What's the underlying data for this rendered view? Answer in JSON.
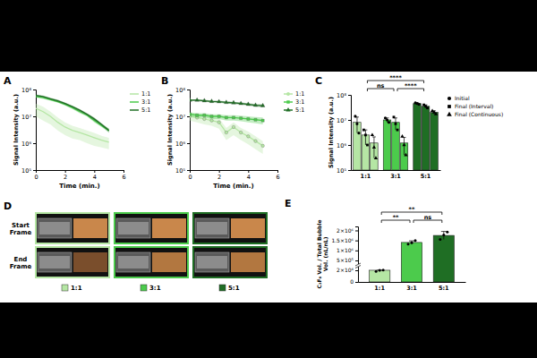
{
  "chart_data": [
    {
      "panel": "A",
      "type": "line",
      "x_label": "Time (min.)",
      "y_label": "Signal Intensity (a.u.)",
      "x": [
        0,
        0.5,
        1,
        1.5,
        2,
        2.5,
        3,
        3.5,
        4,
        4.5,
        5
      ],
      "xlim": [
        0,
        6
      ],
      "xticks": [
        0,
        2,
        4,
        6
      ],
      "log": "y",
      "ylim": [
        100000,
        100000000
      ],
      "yticks": [
        {
          "value": 100000,
          "label": "10⁵"
        },
        {
          "value": 1000000,
          "label": "10⁶"
        },
        {
          "value": 10000000,
          "label": "10⁷"
        },
        {
          "value": 100000000,
          "label": "10⁸"
        }
      ],
      "legend": "right",
      "series": [
        {
          "name": "1:1",
          "color": "#b5e6a4",
          "values": [
            20000000,
            15000000,
            10000000,
            6000000,
            4000000,
            3000000,
            2500000,
            2000000,
            1600000,
            1300000,
            1100000
          ],
          "errors": [
            10000000,
            8000000,
            5000000,
            3000000,
            2000000,
            1500000,
            1200000,
            1000000,
            800000,
            600000,
            500000
          ]
        },
        {
          "name": "3:1",
          "color": "#4ccb4c",
          "values": [
            55000000,
            50000000,
            42000000,
            35000000,
            28000000,
            21000000,
            15000000,
            11000000,
            7000000,
            4500000,
            3000000
          ],
          "errors": [
            5000000,
            5000000,
            4000000,
            3000000,
            3000000,
            2000000,
            2000000,
            1000000,
            1000000,
            500000,
            500000
          ]
        },
        {
          "name": "5:1",
          "color": "#1f6e24",
          "values": [
            60000000,
            55000000,
            45000000,
            38000000,
            30000000,
            23000000,
            17000000,
            12000000,
            8000000,
            5000000,
            3000000
          ],
          "errors": [
            6000000,
            5000000,
            4000000,
            4000000,
            3000000,
            2000000,
            2000000,
            1000000,
            1000000,
            500000,
            500000
          ]
        }
      ]
    },
    {
      "panel": "B",
      "type": "line",
      "x_label": "Time (min.)",
      "y_label": "Signal Intensity (a.u.)",
      "x": [
        0,
        0.5,
        1,
        1.5,
        2,
        2.5,
        3,
        3.5,
        4,
        4.5,
        5
      ],
      "xlim": [
        0,
        6
      ],
      "xticks": [
        0,
        2,
        4,
        6
      ],
      "log": "y",
      "ylim": [
        100000,
        100000000
      ],
      "yticks": [
        {
          "value": 100000,
          "label": "10⁵"
        },
        {
          "value": 1000000,
          "label": "10⁶"
        },
        {
          "value": 10000000,
          "label": "10⁷"
        },
        {
          "value": 100000000,
          "label": "10⁸"
        }
      ],
      "legend": "right",
      "series": [
        {
          "name": "1:1",
          "color": "#b5e6a4",
          "marker": "circle",
          "values": [
            10000000,
            9000000,
            8000000,
            7000000,
            6000000,
            2500000,
            4000000,
            2500000,
            1800000,
            1200000,
            800000
          ],
          "errors": [
            3000000,
            3000000,
            3000000,
            2500000,
            2500000,
            1200000,
            2000000,
            1200000,
            900000,
            600000,
            400000
          ]
        },
        {
          "name": "3:1",
          "color": "#4ccb4c",
          "marker": "square",
          "values": [
            12000000,
            11000000,
            11000000,
            10000000,
            10000000,
            9000000,
            9000000,
            8500000,
            8000000,
            7500000,
            7000000
          ],
          "errors": [
            2000000,
            2000000,
            2000000,
            2000000,
            2000000,
            2000000,
            2000000,
            2000000,
            2000000,
            2000000,
            2000000
          ]
        },
        {
          "name": "5:1",
          "color": "#1f6e24",
          "marker": "triangle",
          "values": [
            40000000,
            40000000,
            38000000,
            36000000,
            35000000,
            33000000,
            32000000,
            30000000,
            28000000,
            26000000,
            25000000
          ],
          "errors": [
            3000000,
            3000000,
            3000000,
            3000000,
            3000000,
            3000000,
            3000000,
            3000000,
            3000000,
            3000000,
            3000000
          ]
        }
      ]
    },
    {
      "panel": "C",
      "type": "bar",
      "y_label": "Signal Intensity (a.u.)",
      "categories": [
        "1:1",
        "3:1",
        "5:1"
      ],
      "colors": [
        "#b5e6a4",
        "#4ccb4c",
        "#1f6e24"
      ],
      "log": "y",
      "ylim": [
        100000,
        100000000
      ],
      "yticks": [
        {
          "value": 100000,
          "label": "10⁵"
        },
        {
          "value": 1000000,
          "label": "10⁶"
        },
        {
          "value": 10000000,
          "label": "10⁷"
        },
        {
          "value": 100000000,
          "label": "10⁸"
        }
      ],
      "legend": "right",
      "series": [
        {
          "name": "Initial",
          "color": "#000000",
          "marker": "circle",
          "values": [
            8000000,
            10000000,
            45000000
          ],
          "errors": [
            5000000,
            2000000,
            3000000
          ],
          "points": [
            [
              14000000,
              7000000,
              3000000
            ],
            [
              12000000,
              10000000,
              8000000
            ],
            [
              48000000,
              45000000,
              42000000
            ]
          ]
        },
        {
          "name": "Final (Interval)",
          "color": "#000000",
          "marker": "square",
          "values": [
            2500000,
            8000000,
            35000000
          ],
          "errors": [
            1500000,
            4000000,
            5000000
          ],
          "points": [
            [
              4000000,
              2500000,
              1000000
            ],
            [
              13000000,
              7000000,
              4000000
            ],
            [
              40000000,
              35000000,
              30000000
            ]
          ]
        },
        {
          "name": "Final (Continuous)",
          "color": "#000000",
          "marker": "triangle",
          "values": [
            1200000,
            1200000,
            20000000
          ],
          "errors": [
            900000,
            800000,
            3000000
          ],
          "points": [
            [
              2500000,
              800000,
              300000
            ],
            [
              2200000,
              1000000,
              400000
            ],
            [
              23000000,
              20000000,
              17000000
            ]
          ]
        }
      ],
      "annotations": [
        {
          "text": "ns",
          "from": "1:1",
          "to": "3:1"
        },
        {
          "text": "****",
          "from": "3:1",
          "to": "5:1"
        },
        {
          "text": "****",
          "from": "1:1",
          "to": "5:1"
        }
      ]
    },
    {
      "panel": "D",
      "type": "image",
      "rows": [
        "Start Frame",
        "End Frame"
      ],
      "legend": "bottom",
      "series": [
        {
          "name": "1:1",
          "color": "#b5e6a4"
        },
        {
          "name": "3:1",
          "color": "#4ccb4c"
        },
        {
          "name": "5:1",
          "color": "#1f6e24"
        }
      ]
    },
    {
      "panel": "E",
      "type": "bar",
      "y_label": "C₃F₈ Vol. / Total Bubble Vol. (nL/nL)",
      "categories": [
        "1:1",
        "3:1",
        "5:1"
      ],
      "colors": [
        "#b5e6a4",
        "#4ccb4c",
        "#1f6e24"
      ],
      "values": [
        22000,
        1400000,
        1750000
      ],
      "errors": [
        4000,
        80000,
        200000
      ],
      "points": [
        [
          18000,
          22000,
          26000
        ],
        [
          1320000,
          1380000,
          1500000
        ],
        [
          1550000,
          1780000,
          1920000
        ]
      ],
      "ylim": [
        0,
        2200000
      ],
      "yticks": [
        0,
        {
          "value": 20000,
          "label": "2×10⁴"
        },
        {
          "value": 500000,
          "label": "5×10⁵"
        },
        {
          "value": 1000000,
          "label": "1×10⁶"
        },
        {
          "value": 1500000,
          "label": "1.5×10⁶"
        },
        {
          "value": 2000000,
          "label": "2×10⁶"
        }
      ],
      "annotations": [
        {
          "text": "**",
          "from": "1:1",
          "to": "3:1"
        },
        {
          "text": "**",
          "from": "1:1",
          "to": "5:1"
        },
        {
          "text": "ns",
          "from": "3:1",
          "to": "5:1"
        }
      ]
    }
  ]
}
